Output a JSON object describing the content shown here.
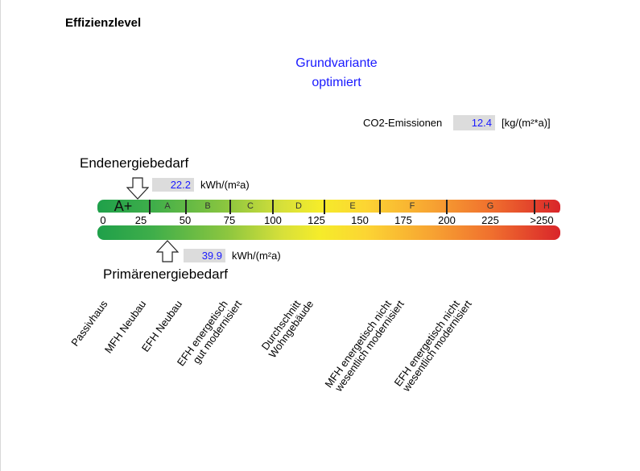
{
  "title": "Effizienzlevel",
  "variant": {
    "line1": "Grundvariante",
    "line2": "optimiert"
  },
  "co2": {
    "label": "CO2-Emissionen",
    "value": "12.4",
    "unit": "[kg/(m²*a)]"
  },
  "endenergie": {
    "label": "Endenergiebedarf",
    "value": "22.2",
    "unit": "kWh/(m²a)"
  },
  "primaerenergie": {
    "label": "Primärenergiebedarf",
    "value": "39.9",
    "unit": "kWh/(m²a)"
  },
  "classes": [
    "A+",
    "A",
    "B",
    "C",
    "D",
    "E",
    "F",
    "G",
    "H"
  ],
  "ticks": [
    "0",
    "25",
    "50",
    "75",
    "100",
    "125",
    "150",
    "175",
    "200",
    "225",
    ">250"
  ],
  "references": [
    [
      "Passivhaus"
    ],
    [
      "MFH Neubau"
    ],
    [
      "EFH Neubau"
    ],
    [
      "EFH energetisch",
      "gut modernisiert"
    ],
    [
      "Durchschnitt",
      "Wohngebäude"
    ],
    [
      "MFH energetisch nicht",
      "wesentlich modernisiert"
    ],
    [
      "EFH energetisch nicht",
      "wesentlich modernisiert"
    ]
  ],
  "colors": {
    "value_text": "#1a1aff",
    "scale_start": "#1fa04a",
    "scale_end": "#d9252a"
  }
}
